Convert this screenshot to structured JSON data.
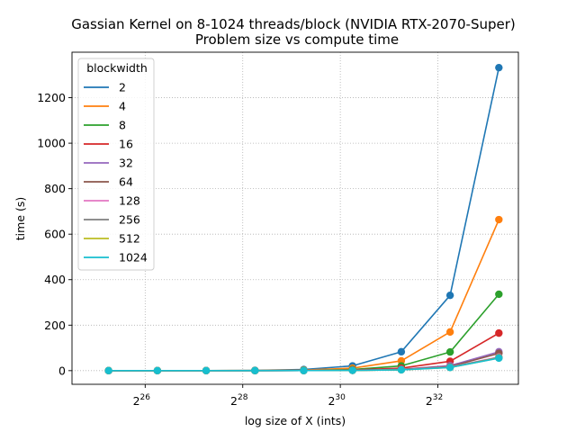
{
  "chart_data": {
    "type": "line",
    "title": "Gassian Kernel on 8-1024 threads/block (NVIDIA RTX-2070-Super)",
    "subtitle": "Problem size vs compute time",
    "xlabel": "log size of X (ints)",
    "ylabel": "time (s)",
    "x_scale": "log2",
    "x_tick_labels": [
      "2",
      "2",
      "2",
      "2"
    ],
    "x_tick_exponents": [
      "26",
      "28",
      "30",
      "32"
    ],
    "x_tick_values": [
      26,
      28,
      30,
      32
    ],
    "x_values": [
      25.25,
      26.25,
      27.25,
      28.25,
      29.25,
      30.25,
      31.25,
      32.25,
      33.25
    ],
    "xlim": [
      24.5,
      33.65
    ],
    "ylim": [
      -60,
      1400
    ],
    "y_ticks": [
      0,
      200,
      400,
      600,
      800,
      1000,
      1200
    ],
    "grid": true,
    "grid_style": "dotted",
    "legend_title": "blockwidth",
    "legend_position": "top-left",
    "series": [
      {
        "name": "2",
        "color": "#1f77b4",
        "values": [
          0,
          0.1,
          0.3,
          1.3,
          5,
          21,
          83,
          331,
          1332
        ]
      },
      {
        "name": "4",
        "color": "#ff7f0e",
        "values": [
          0,
          0.1,
          0.2,
          0.7,
          2.7,
          11,
          43,
          170,
          664
        ]
      },
      {
        "name": "8",
        "color": "#2ca02c",
        "values": [
          0,
          0,
          0.1,
          0.3,
          1.3,
          5,
          21,
          82,
          336
        ]
      },
      {
        "name": "16",
        "color": "#d62728",
        "values": [
          0,
          0,
          0,
          0.2,
          0.7,
          3,
          11,
          41,
          165
        ]
      },
      {
        "name": "32",
        "color": "#9467bd",
        "values": [
          0,
          0,
          0,
          0.1,
          0.4,
          1.6,
          6,
          22,
          83
        ]
      },
      {
        "name": "64",
        "color": "#8c564b",
        "values": [
          0,
          0,
          0,
          0.1,
          0.3,
          1.2,
          5,
          18,
          76
        ]
      },
      {
        "name": "128",
        "color": "#e377c2",
        "values": [
          0,
          0,
          0,
          0.1,
          0.3,
          1,
          4,
          16,
          60
        ]
      },
      {
        "name": "256",
        "color": "#7f7f7f",
        "values": [
          0,
          0,
          0,
          0.1,
          0.3,
          1,
          4,
          15,
          58
        ]
      },
      {
        "name": "512",
        "color": "#bcbd22",
        "values": [
          0,
          0,
          0,
          0.1,
          0.3,
          1,
          3.5,
          14,
          56
        ]
      },
      {
        "name": "1024",
        "color": "#17becf",
        "values": [
          0,
          0,
          0,
          0.1,
          0.3,
          1,
          3.5,
          14,
          55
        ]
      }
    ]
  }
}
